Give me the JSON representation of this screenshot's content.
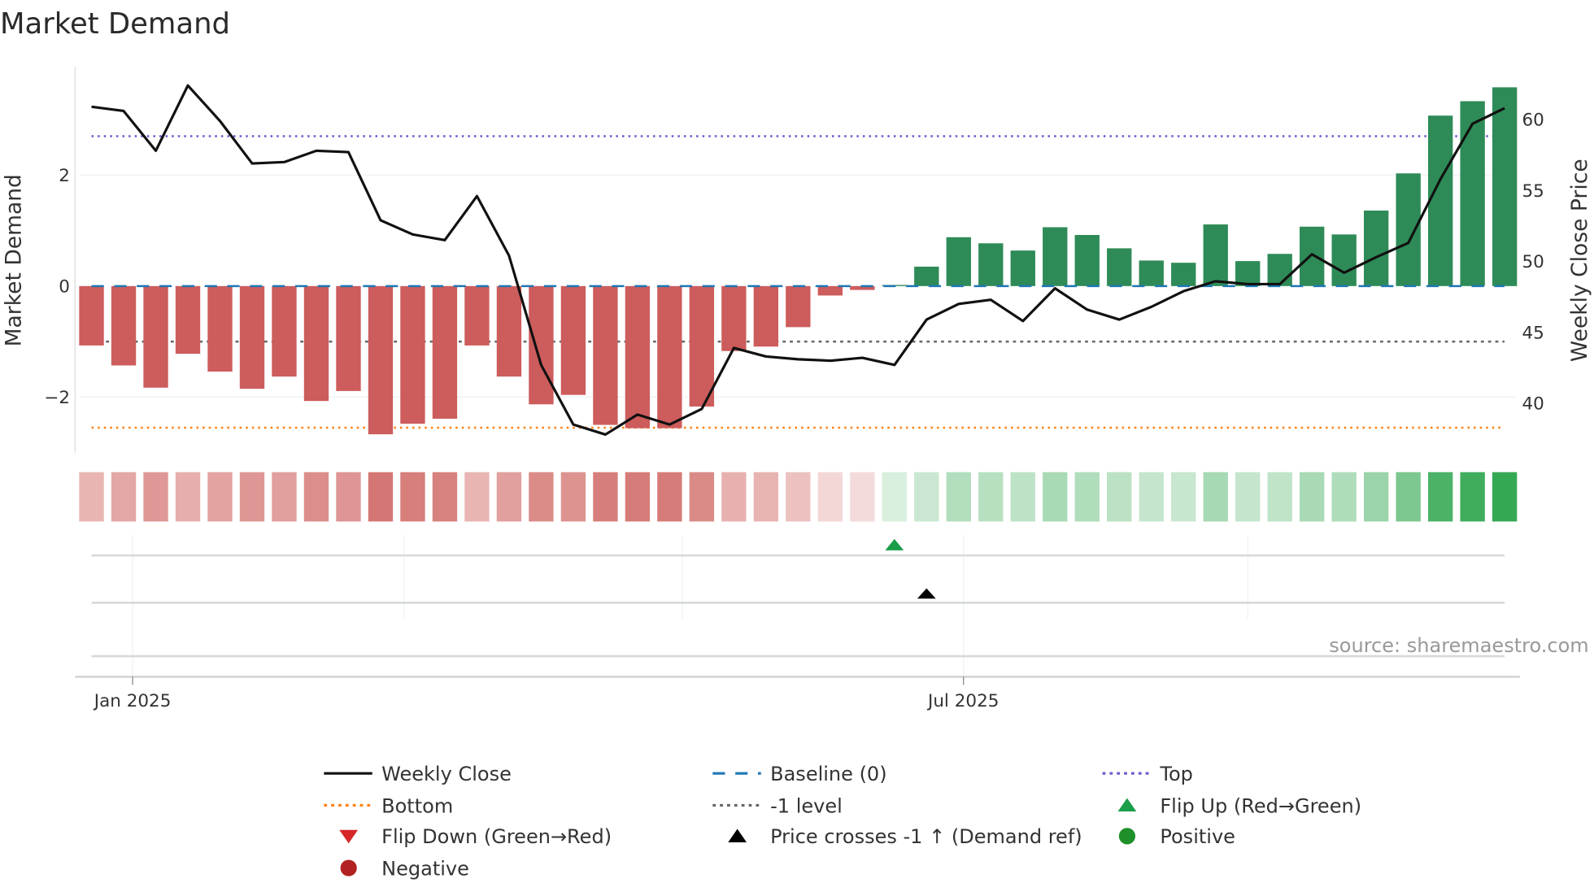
{
  "title": "Market Demand",
  "source": "source: sharemaestro.com",
  "colors": {
    "negative_bar": "#cd5c5c",
    "positive_bar": "#2e8b57",
    "price_line": "#111111",
    "baseline": "#1f77b4",
    "top": "#6a5acd",
    "bottom": "#ff7f0e",
    "minus_one": "#666666",
    "flip_up": "#1a9e4a",
    "flip_down": "#d62728",
    "cross": "#000000",
    "positive_dot": "#1f8f2a",
    "negative_dot": "#b22222"
  },
  "chart_data": {
    "type": "bar+line",
    "title": "Market Demand",
    "ylabel": "Market Demand",
    "y2label": "Weekly Close Price",
    "ylim": [
      -3.0,
      3.75
    ],
    "y2lim": [
      35.6,
      64.5
    ],
    "yticks": [
      {
        "v": 2,
        "label": "2"
      },
      {
        "v": 0,
        "label": "0"
      },
      {
        "v": -2,
        "label": "−2"
      }
    ],
    "y2ticks": [
      {
        "v": 60,
        "label": "60"
      },
      {
        "v": 55,
        "label": "55"
      },
      {
        "v": 50,
        "label": "50"
      },
      {
        "v": 45,
        "label": "45"
      },
      {
        "v": 40,
        "label": "40"
      }
    ],
    "xticks": [
      {
        "index": 1.28,
        "label": "Jan 2025"
      },
      {
        "index": 27.15,
        "label": "Jul 2025"
      }
    ],
    "minor_grid_index": [
      1.28,
      9.74,
      18.4,
      27.15,
      36.0
    ],
    "demand": [
      -1.07,
      -1.43,
      -1.83,
      -1.22,
      -1.54,
      -1.85,
      -1.63,
      -2.07,
      -1.89,
      -2.67,
      -2.48,
      -2.39,
      -1.07,
      -1.63,
      -2.13,
      -1.96,
      -2.5,
      -2.56,
      -2.56,
      -2.17,
      -1.17,
      -1.09,
      -0.74,
      -0.17,
      -0.07,
      0.02,
      0.35,
      0.88,
      0.77,
      0.64,
      1.06,
      0.92,
      0.68,
      0.46,
      0.42,
      1.11,
      0.45,
      0.58,
      1.07,
      0.93,
      1.36,
      2.03,
      3.07,
      3.33,
      3.58
    ],
    "weekly_close": [
      60.9,
      60.6,
      57.8,
      62.4,
      59.9,
      56.9,
      57.0,
      57.8,
      57.7,
      52.9,
      51.9,
      51.5,
      54.6,
      50.4,
      42.7,
      38.5,
      37.8,
      39.2,
      38.5,
      39.6,
      43.9,
      43.3,
      43.1,
      43.0,
      43.2,
      42.7,
      45.9,
      47.0,
      47.3,
      45.8,
      48.1,
      46.6,
      45.9,
      46.8,
      47.9,
      48.6,
      48.4,
      48.4,
      50.5,
      49.2,
      50.3,
      51.3,
      55.8,
      59.7,
      60.8
    ],
    "reference_lines": {
      "baseline": 0,
      "top": 2.7,
      "bottom": -2.55,
      "minus_one": -1
    },
    "flip_up_index": [
      25
    ],
    "flip_down_index": [],
    "price_cross_index": [
      26
    ]
  },
  "legend": [
    {
      "label": "Weekly Close",
      "type": "line-solid",
      "color": "#111111"
    },
    {
      "label": "Baseline (0)",
      "type": "line-dashed",
      "color": "#1f77b4"
    },
    {
      "label": "Top",
      "type": "line-dotted",
      "color": "#6a5acd"
    },
    {
      "label": "Bottom",
      "type": "line-dotted",
      "color": "#ff7f0e"
    },
    {
      "label": "-1 level",
      "type": "line-dotted",
      "color": "#666666"
    },
    {
      "label": "Flip Up (Red→Green)",
      "type": "triangle-up",
      "color": "#1a9e4a"
    },
    {
      "label": "Flip Down (Green→Red)",
      "type": "triangle-down",
      "color": "#d62728"
    },
    {
      "label": "Price crosses -1 ↑ (Demand ref)",
      "type": "triangle-up",
      "color": "#000000"
    },
    {
      "label": "Positive",
      "type": "dot",
      "color": "#1f8f2a"
    },
    {
      "label": "Negative",
      "type": "dot",
      "color": "#b22222"
    }
  ]
}
